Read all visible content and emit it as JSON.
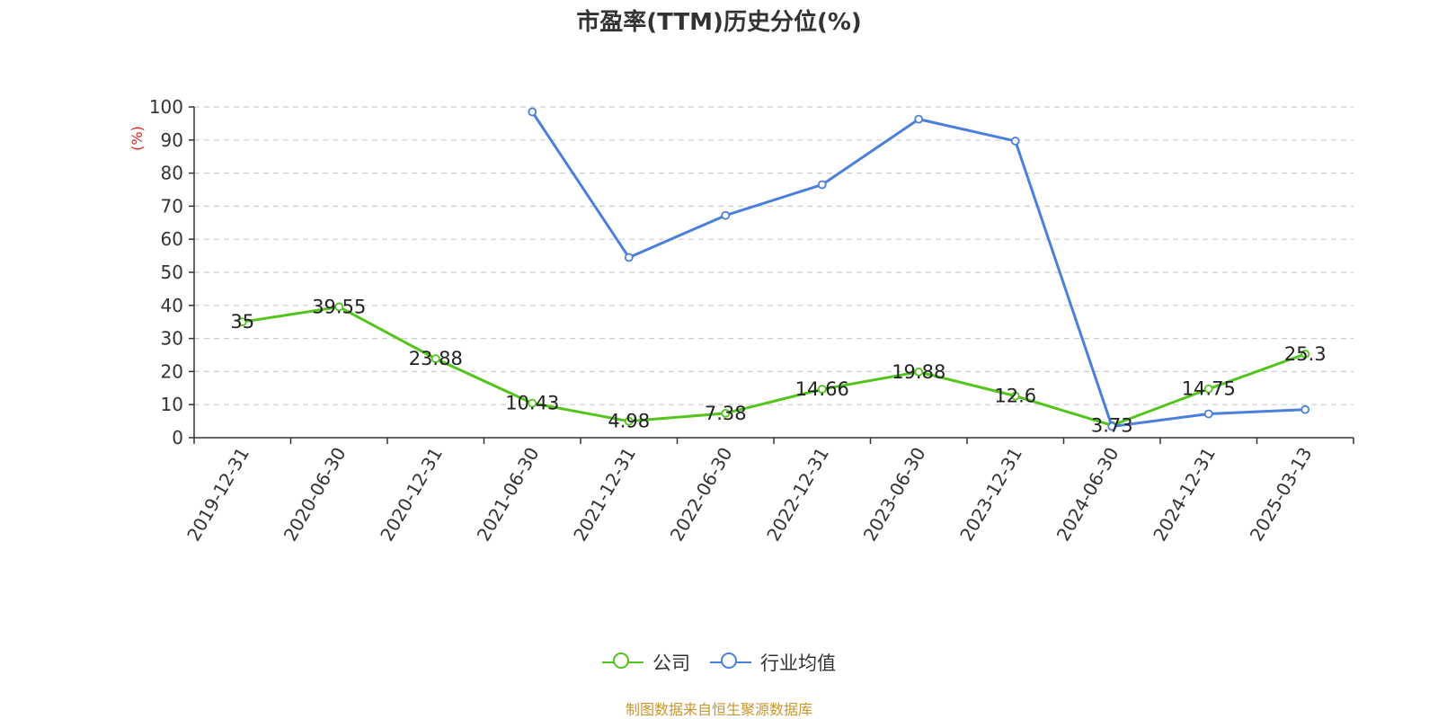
{
  "title": "市盈率(TTM)历史分位(%)",
  "source": "制图数据来自恒生聚源数据库",
  "legend": [
    {
      "label": "公司",
      "color": "#52c41a"
    },
    {
      "label": "行业均值",
      "color": "#4a7fdc"
    }
  ],
  "chart_data": {
    "type": "line",
    "title": "市盈率(TTM)历史分位(%)",
    "ylabel": "(%)",
    "xlabel": "",
    "ylim": [
      0,
      100
    ],
    "yticks": [
      0,
      10,
      20,
      30,
      40,
      50,
      60,
      70,
      80,
      90,
      100
    ],
    "grid": true,
    "legend_position": "bottom",
    "categories": [
      "2019-12-31",
      "2020-06-30",
      "2020-12-31",
      "2021-06-30",
      "2021-12-31",
      "2022-06-30",
      "2022-12-31",
      "2023-06-30",
      "2023-12-31",
      "2024-06-30",
      "2024-12-31",
      "2025-03-13"
    ],
    "series": [
      {
        "name": "公司",
        "color": "#52c41a",
        "show_labels": true,
        "values": [
          35,
          39.55,
          23.88,
          10.43,
          4.98,
          7.38,
          14.66,
          19.88,
          12.6,
          3.73,
          14.75,
          25.3
        ]
      },
      {
        "name": "行业均值",
        "color": "#4a7fdc",
        "show_labels": false,
        "values": [
          null,
          null,
          null,
          98.5,
          54.5,
          67.2,
          76.5,
          96.3,
          89.7,
          3.4,
          7.2,
          8.5
        ]
      }
    ]
  }
}
